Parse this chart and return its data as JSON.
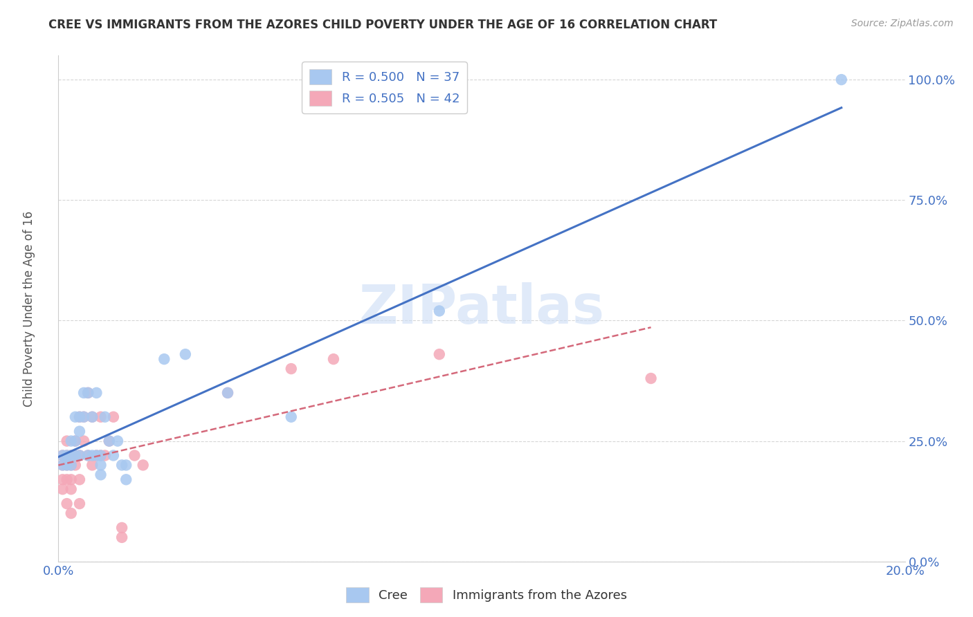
{
  "title": "CREE VS IMMIGRANTS FROM THE AZORES CHILD POVERTY UNDER THE AGE OF 16 CORRELATION CHART",
  "source": "Source: ZipAtlas.com",
  "ylabel": "Child Poverty Under the Age of 16",
  "xlim": [
    0.0,
    0.2
  ],
  "ylim": [
    0.0,
    1.05
  ],
  "yticks": [
    0.0,
    0.25,
    0.5,
    0.75,
    1.0
  ],
  "ytick_labels": [
    "0.0%",
    "25.0%",
    "50.0%",
    "75.0%",
    "100.0%"
  ],
  "xticks": [
    0.0,
    0.05,
    0.1,
    0.15,
    0.2
  ],
  "xtick_labels": [
    "0.0%",
    "",
    "",
    "",
    "20.0%"
  ],
  "legend_labels": [
    "Cree",
    "Immigrants from the Azores"
  ],
  "cree_color": "#a8c8f0",
  "azores_color": "#f4a8b8",
  "cree_line_color": "#4472c4",
  "azores_line_color": "#d4687a",
  "cree_R": 0.5,
  "cree_N": 37,
  "azores_R": 0.505,
  "azores_N": 42,
  "watermark_text": "ZIPatlas",
  "cree_scatter": [
    [
      0.001,
      0.22
    ],
    [
      0.001,
      0.2
    ],
    [
      0.002,
      0.22
    ],
    [
      0.002,
      0.2
    ],
    [
      0.003,
      0.25
    ],
    [
      0.003,
      0.22
    ],
    [
      0.003,
      0.2
    ],
    [
      0.004,
      0.25
    ],
    [
      0.004,
      0.3
    ],
    [
      0.004,
      0.22
    ],
    [
      0.005,
      0.27
    ],
    [
      0.005,
      0.22
    ],
    [
      0.005,
      0.3
    ],
    [
      0.006,
      0.35
    ],
    [
      0.006,
      0.3
    ],
    [
      0.007,
      0.35
    ],
    [
      0.007,
      0.22
    ],
    [
      0.008,
      0.3
    ],
    [
      0.008,
      0.22
    ],
    [
      0.009,
      0.35
    ],
    [
      0.009,
      0.22
    ],
    [
      0.01,
      0.22
    ],
    [
      0.01,
      0.2
    ],
    [
      0.01,
      0.18
    ],
    [
      0.011,
      0.3
    ],
    [
      0.012,
      0.25
    ],
    [
      0.013,
      0.22
    ],
    [
      0.014,
      0.25
    ],
    [
      0.015,
      0.2
    ],
    [
      0.016,
      0.2
    ],
    [
      0.016,
      0.17
    ],
    [
      0.025,
      0.42
    ],
    [
      0.03,
      0.43
    ],
    [
      0.04,
      0.35
    ],
    [
      0.055,
      0.3
    ],
    [
      0.09,
      0.52
    ],
    [
      0.185,
      1.0
    ]
  ],
  "azores_scatter": [
    [
      0.001,
      0.22
    ],
    [
      0.001,
      0.2
    ],
    [
      0.001,
      0.17
    ],
    [
      0.001,
      0.15
    ],
    [
      0.002,
      0.25
    ],
    [
      0.002,
      0.22
    ],
    [
      0.002,
      0.2
    ],
    [
      0.002,
      0.17
    ],
    [
      0.002,
      0.12
    ],
    [
      0.003,
      0.22
    ],
    [
      0.003,
      0.2
    ],
    [
      0.003,
      0.17
    ],
    [
      0.003,
      0.15
    ],
    [
      0.003,
      0.1
    ],
    [
      0.004,
      0.25
    ],
    [
      0.004,
      0.22
    ],
    [
      0.004,
      0.2
    ],
    [
      0.005,
      0.3
    ],
    [
      0.005,
      0.22
    ],
    [
      0.005,
      0.17
    ],
    [
      0.005,
      0.12
    ],
    [
      0.006,
      0.3
    ],
    [
      0.006,
      0.25
    ],
    [
      0.007,
      0.35
    ],
    [
      0.007,
      0.22
    ],
    [
      0.008,
      0.3
    ],
    [
      0.008,
      0.2
    ],
    [
      0.009,
      0.22
    ],
    [
      0.01,
      0.3
    ],
    [
      0.01,
      0.22
    ],
    [
      0.011,
      0.22
    ],
    [
      0.012,
      0.25
    ],
    [
      0.013,
      0.3
    ],
    [
      0.015,
      0.07
    ],
    [
      0.015,
      0.05
    ],
    [
      0.018,
      0.22
    ],
    [
      0.02,
      0.2
    ],
    [
      0.04,
      0.35
    ],
    [
      0.055,
      0.4
    ],
    [
      0.065,
      0.42
    ],
    [
      0.09,
      0.43
    ],
    [
      0.14,
      0.38
    ]
  ]
}
